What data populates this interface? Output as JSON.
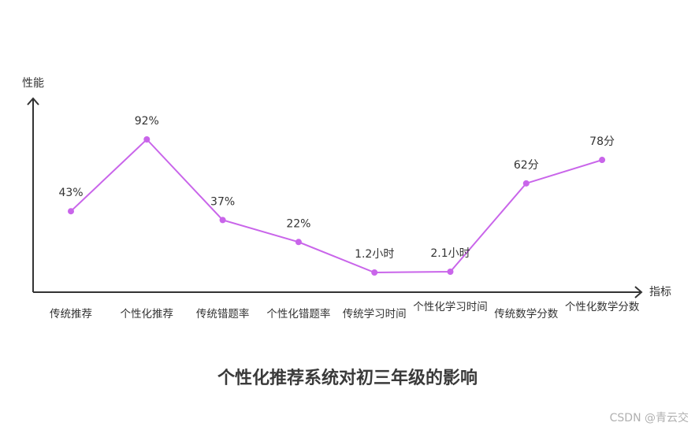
{
  "chart_data": {
    "type": "line",
    "title": "个性化推荐系统对初三年级的影响",
    "xlabel": "指标",
    "ylabel": "性能",
    "categories": [
      "传统推荐",
      "个性化推荐",
      "传统错题率",
      "个性化错题率",
      "传统学习时间",
      "个性化学习时间",
      "传统数学分数",
      "个性化数学分数"
    ],
    "values": [
      43,
      92,
      37,
      22,
      1.2,
      2.1,
      62,
      78
    ],
    "data_labels": [
      "43%",
      "92%",
      "37%",
      "22%",
      "1.2小时",
      "2.1小时",
      "62分",
      "78分"
    ],
    "grid": false,
    "legend": "none",
    "line_color": "#c965ea"
  },
  "watermark": "CSDN @青云交"
}
